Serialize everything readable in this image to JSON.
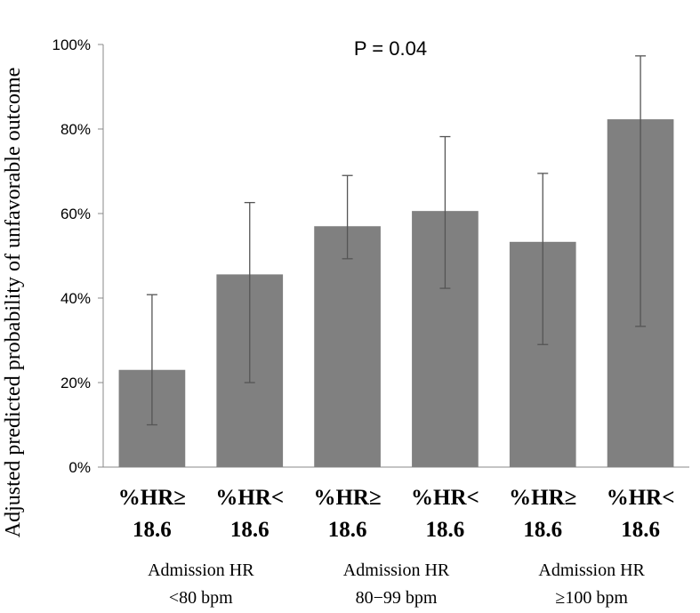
{
  "chart_data": {
    "type": "bar",
    "title": "",
    "annotation": "P = 0.04",
    "ylabel": "Adjusted predicted probability of unfavorable outcome",
    "xlabel": "",
    "ylim": [
      0,
      100
    ],
    "yticks": [
      "0%",
      "20%",
      "40%",
      "60%",
      "80%",
      "100%"
    ],
    "ytick_values": [
      0,
      20,
      40,
      60,
      80,
      100
    ],
    "bar_color": "#808080",
    "error_color": "#555555",
    "categories": [
      {
        "line1": "%HR≥",
        "line2": "18.6"
      },
      {
        "line1": "%HR<",
        "line2": "18.6"
      },
      {
        "line1": "%HR≥",
        "line2": "18.6"
      },
      {
        "line1": "%HR<",
        "line2": "18.6"
      },
      {
        "line1": "%HR≥",
        "line2": "18.6"
      },
      {
        "line1": "%HR<",
        "line2": "18.6"
      }
    ],
    "values": [
      23,
      45.6,
      57,
      60.6,
      53.3,
      82.3
    ],
    "error_low": [
      10,
      20,
      49.3,
      42.3,
      29,
      33.3
    ],
    "error_high": [
      40.8,
      62.6,
      69,
      78.2,
      69.5,
      97.3
    ],
    "groups": [
      {
        "line1": "Admission HR",
        "line2": "<80 bpm"
      },
      {
        "line1": "Admission HR",
        "line2": "80−99 bpm"
      },
      {
        "line1": "Admission HR",
        "line2": "≥100 bpm"
      }
    ]
  }
}
